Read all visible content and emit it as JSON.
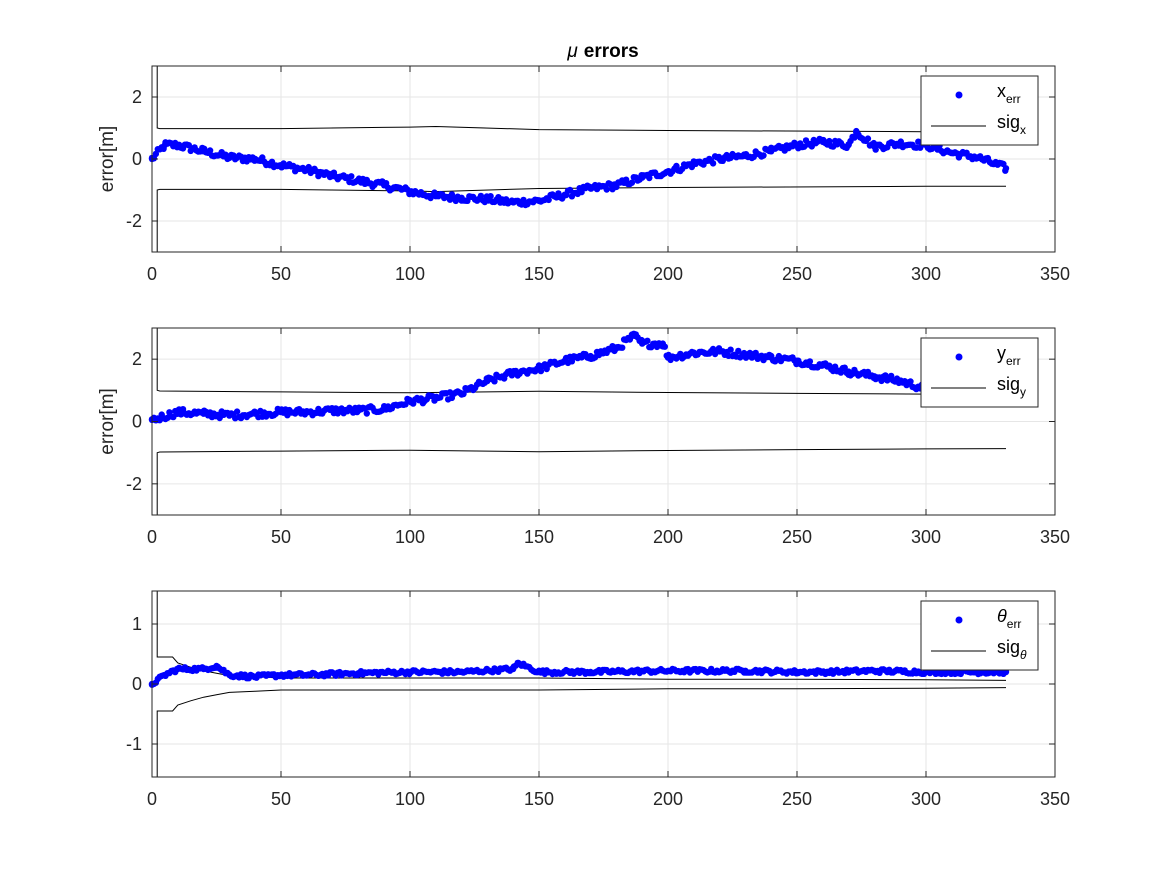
{
  "figure": {
    "title_symbol": "μ",
    "title_text": "errors"
  },
  "chart_data": [
    {
      "type": "scatter",
      "ylabel": "error[m]",
      "xlim": [
        0,
        350
      ],
      "ylim": [
        -3,
        3
      ],
      "xticks": [
        "0",
        "50",
        "100",
        "150",
        "200",
        "250",
        "300",
        "350"
      ],
      "yticks": [
        {
          "value": 2,
          "label": "2"
        },
        {
          "value": 0,
          "label": "0"
        },
        {
          "value": -2,
          "label": "-2"
        }
      ],
      "grid": true,
      "legend_position": "top-right",
      "legend": [
        {
          "main": "x",
          "sub": "err",
          "marker": "dot"
        },
        {
          "main": "sig",
          "sub": "x",
          "marker": "line"
        }
      ],
      "colors": {
        "points": "#0000ff",
        "bounds": "#000000"
      },
      "error_points": {
        "x": [
          0,
          5,
          10,
          20,
          30,
          40,
          50,
          60,
          70,
          80,
          90,
          100,
          110,
          120,
          130,
          140,
          150,
          160,
          170,
          180,
          190,
          200,
          210,
          220,
          230,
          240,
          250,
          260,
          270,
          273,
          280,
          290,
          300,
          310,
          320,
          331
        ],
        "y": [
          0.0,
          0.45,
          0.45,
          0.25,
          0.05,
          0.0,
          -0.2,
          -0.35,
          -0.55,
          -0.7,
          -0.85,
          -1.05,
          -1.2,
          -1.25,
          -1.3,
          -1.4,
          -1.35,
          -1.15,
          -0.95,
          -0.85,
          -0.6,
          -0.4,
          -0.15,
          0.0,
          0.1,
          0.25,
          0.45,
          0.55,
          0.45,
          0.9,
          0.4,
          0.5,
          0.45,
          0.2,
          0.05,
          -0.3
        ]
      },
      "sigma_upper": {
        "x": [
          0,
          2,
          2,
          3,
          50,
          100,
          110,
          150,
          200,
          300,
          331
        ],
        "y": [
          3,
          3,
          1.0,
          0.98,
          0.98,
          1.03,
          1.05,
          0.95,
          0.92,
          0.88,
          0.88
        ]
      },
      "sigma_lower": {
        "x": [
          0,
          2,
          2,
          3,
          50,
          100,
          110,
          150,
          200,
          300,
          331
        ],
        "y": [
          -3,
          -3,
          -1.0,
          -0.98,
          -0.98,
          -1.03,
          -1.05,
          -0.95,
          -0.92,
          -0.88,
          -0.88
        ]
      }
    },
    {
      "type": "scatter",
      "ylabel": "error[m]",
      "xlim": [
        0,
        350
      ],
      "ylim": [
        -3,
        3
      ],
      "xticks": [
        "0",
        "50",
        "100",
        "150",
        "200",
        "250",
        "300",
        "350"
      ],
      "yticks": [
        {
          "value": 2,
          "label": "2"
        },
        {
          "value": 0,
          "label": "0"
        },
        {
          "value": -2,
          "label": "-2"
        }
      ],
      "grid": true,
      "legend_position": "top-right",
      "legend": [
        {
          "main": "y",
          "sub": "err",
          "marker": "dot"
        },
        {
          "main": "sig",
          "sub": "y",
          "marker": "line"
        }
      ],
      "colors": {
        "points": "#0000ff",
        "bounds": "#000000"
      },
      "error_points": {
        "x": [
          0,
          10,
          20,
          30,
          40,
          50,
          60,
          70,
          80,
          90,
          100,
          110,
          120,
          130,
          140,
          150,
          160,
          170,
          180,
          187,
          190,
          198,
          200,
          210,
          220,
          230,
          240,
          250,
          260,
          270,
          280,
          290,
          300
        ],
        "y": [
          0.05,
          0.3,
          0.25,
          0.2,
          0.25,
          0.3,
          0.3,
          0.35,
          0.35,
          0.4,
          0.65,
          0.75,
          0.9,
          1.3,
          1.55,
          1.7,
          1.95,
          2.1,
          2.35,
          2.75,
          2.5,
          2.5,
          2.05,
          2.2,
          2.25,
          2.15,
          2.05,
          1.95,
          1.8,
          1.6,
          1.45,
          1.3,
          1.05
        ]
      },
      "sigma_upper": {
        "x": [
          0,
          2,
          2,
          3,
          50,
          100,
          150,
          200,
          250,
          300,
          331
        ],
        "y": [
          3,
          3,
          1.0,
          0.98,
          0.95,
          0.92,
          0.97,
          0.93,
          0.9,
          0.88,
          0.87
        ]
      },
      "sigma_lower": {
        "x": [
          0,
          2,
          2,
          3,
          50,
          100,
          150,
          200,
          250,
          300,
          331
        ],
        "y": [
          -3,
          -3,
          -1.0,
          -0.98,
          -0.95,
          -0.92,
          -0.97,
          -0.93,
          -0.9,
          -0.88,
          -0.87
        ]
      }
    },
    {
      "type": "scatter",
      "ylabel": "",
      "xlim": [
        0,
        350
      ],
      "ylim": [
        -1.55,
        1.55
      ],
      "xticks": [
        "0",
        "50",
        "100",
        "150",
        "200",
        "250",
        "300",
        "350"
      ],
      "yticks": [
        {
          "value": 1,
          "label": "1"
        },
        {
          "value": 0,
          "label": "0"
        },
        {
          "value": -1,
          "label": "-1"
        }
      ],
      "grid": true,
      "legend_position": "top-right",
      "legend": [
        {
          "main": "θ",
          "sub": "err",
          "marker": "dot"
        },
        {
          "main": "sig",
          "sub": "θ",
          "marker": "line"
        }
      ],
      "colors": {
        "points": "#0000ff",
        "bounds": "#000000"
      },
      "error_points": {
        "x": [
          0,
          5,
          10,
          20,
          25,
          30,
          40,
          50,
          60,
          80,
          100,
          120,
          140,
          142,
          150,
          170,
          200,
          230,
          250,
          260,
          280,
          300,
          331
        ],
        "y": [
          0.0,
          0.15,
          0.25,
          0.25,
          0.3,
          0.15,
          0.12,
          0.15,
          0.15,
          0.18,
          0.2,
          0.2,
          0.25,
          0.35,
          0.2,
          0.2,
          0.22,
          0.22,
          0.2,
          0.2,
          0.22,
          0.2,
          0.2
        ]
      },
      "sigma_upper": {
        "x": [
          0,
          2,
          2,
          4,
          8,
          10,
          15,
          20,
          25,
          30,
          40,
          50,
          55,
          100,
          150,
          200,
          250,
          300,
          331
        ],
        "y": [
          1.55,
          1.55,
          0.45,
          0.45,
          0.45,
          0.35,
          0.28,
          0.22,
          0.18,
          0.14,
          0.12,
          0.1,
          0.1,
          0.1,
          0.1,
          0.08,
          0.08,
          0.07,
          0.06
        ]
      },
      "sigma_lower": {
        "x": [
          0,
          2,
          2,
          4,
          8,
          10,
          15,
          20,
          25,
          30,
          40,
          50,
          55,
          100,
          150,
          200,
          250,
          300,
          331
        ],
        "y": [
          -1.55,
          -1.55,
          -0.45,
          -0.45,
          -0.45,
          -0.35,
          -0.28,
          -0.22,
          -0.18,
          -0.14,
          -0.12,
          -0.1,
          -0.1,
          -0.1,
          -0.1,
          -0.08,
          -0.08,
          -0.07,
          -0.06
        ]
      }
    }
  ]
}
